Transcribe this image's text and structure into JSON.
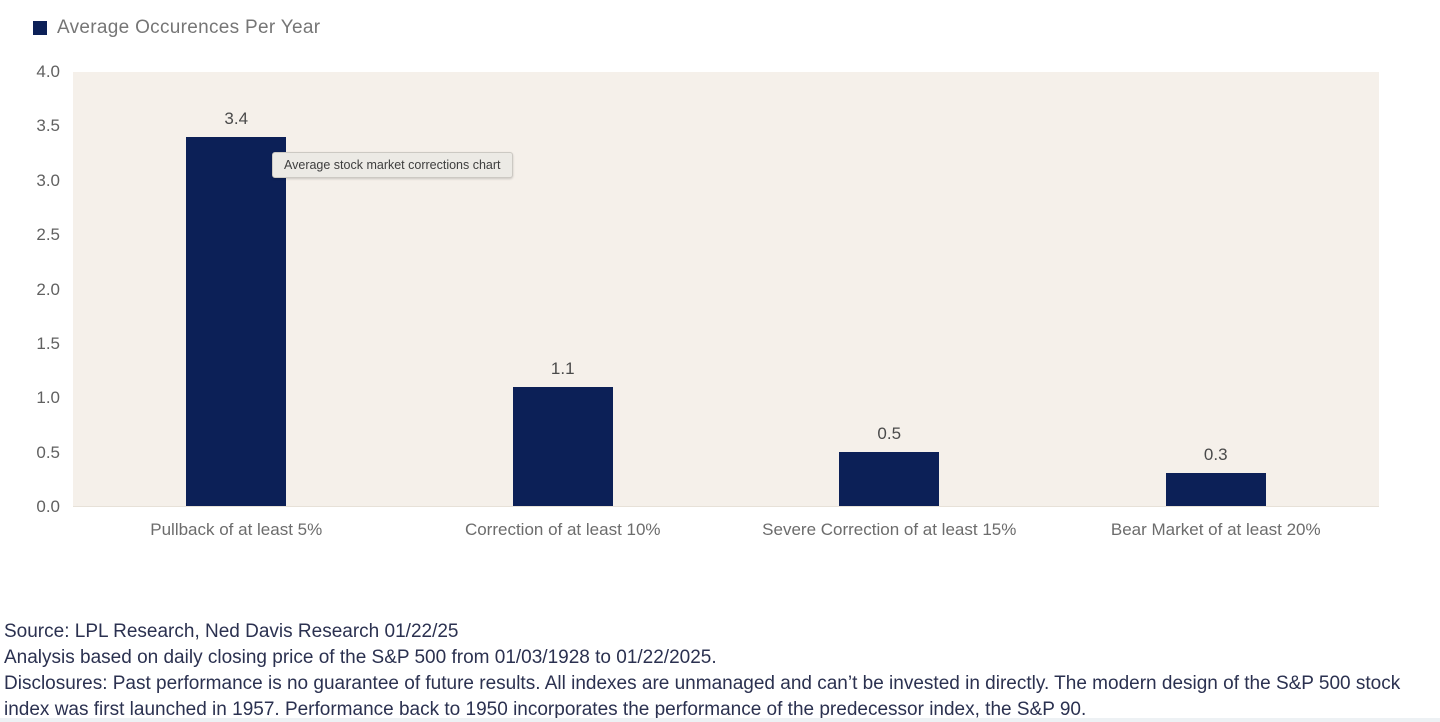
{
  "legend": {
    "label": "Average Occurences Per Year",
    "swatch_color": "#0c2057"
  },
  "tooltip": {
    "text": "Average stock market corrections chart"
  },
  "chart_data": {
    "type": "bar",
    "title": "Average Occurences Per Year",
    "categories": [
      "Pullback of at least 5%",
      "Correction of at least 10%",
      "Severe Correction of at least 15%",
      "Bear Market of at least 20%"
    ],
    "values": [
      3.4,
      1.1,
      0.5,
      0.3
    ],
    "value_labels": [
      "3.4",
      "1.1",
      "0.5",
      "0.3"
    ],
    "ylim": [
      0,
      4
    ],
    "yticks": [
      "4.0",
      "3.5",
      "3.0",
      "2.5",
      "2.0",
      "1.5",
      "1.0",
      "0.5",
      "0.0"
    ],
    "xlabel": "",
    "ylabel": "",
    "grid": false,
    "legend_position": "top-left",
    "bar_color": "#0c2057",
    "plot_background": "#f5f0ea"
  },
  "footer": {
    "line1": "Source: LPL Research, Ned Davis Research 01/22/25",
    "line2": "Analysis based on daily closing price of the S&P 500 from 01/03/1928 to 01/22/2025.",
    "line3": "Disclosures: Past performance is no guarantee of future results. All indexes are unmanaged and can’t be invested in directly. The modern design of the S&P 500 stock index was first launched in 1957. Performance back to 1950 incorporates the performance of the predecessor index, the S&P 90."
  }
}
